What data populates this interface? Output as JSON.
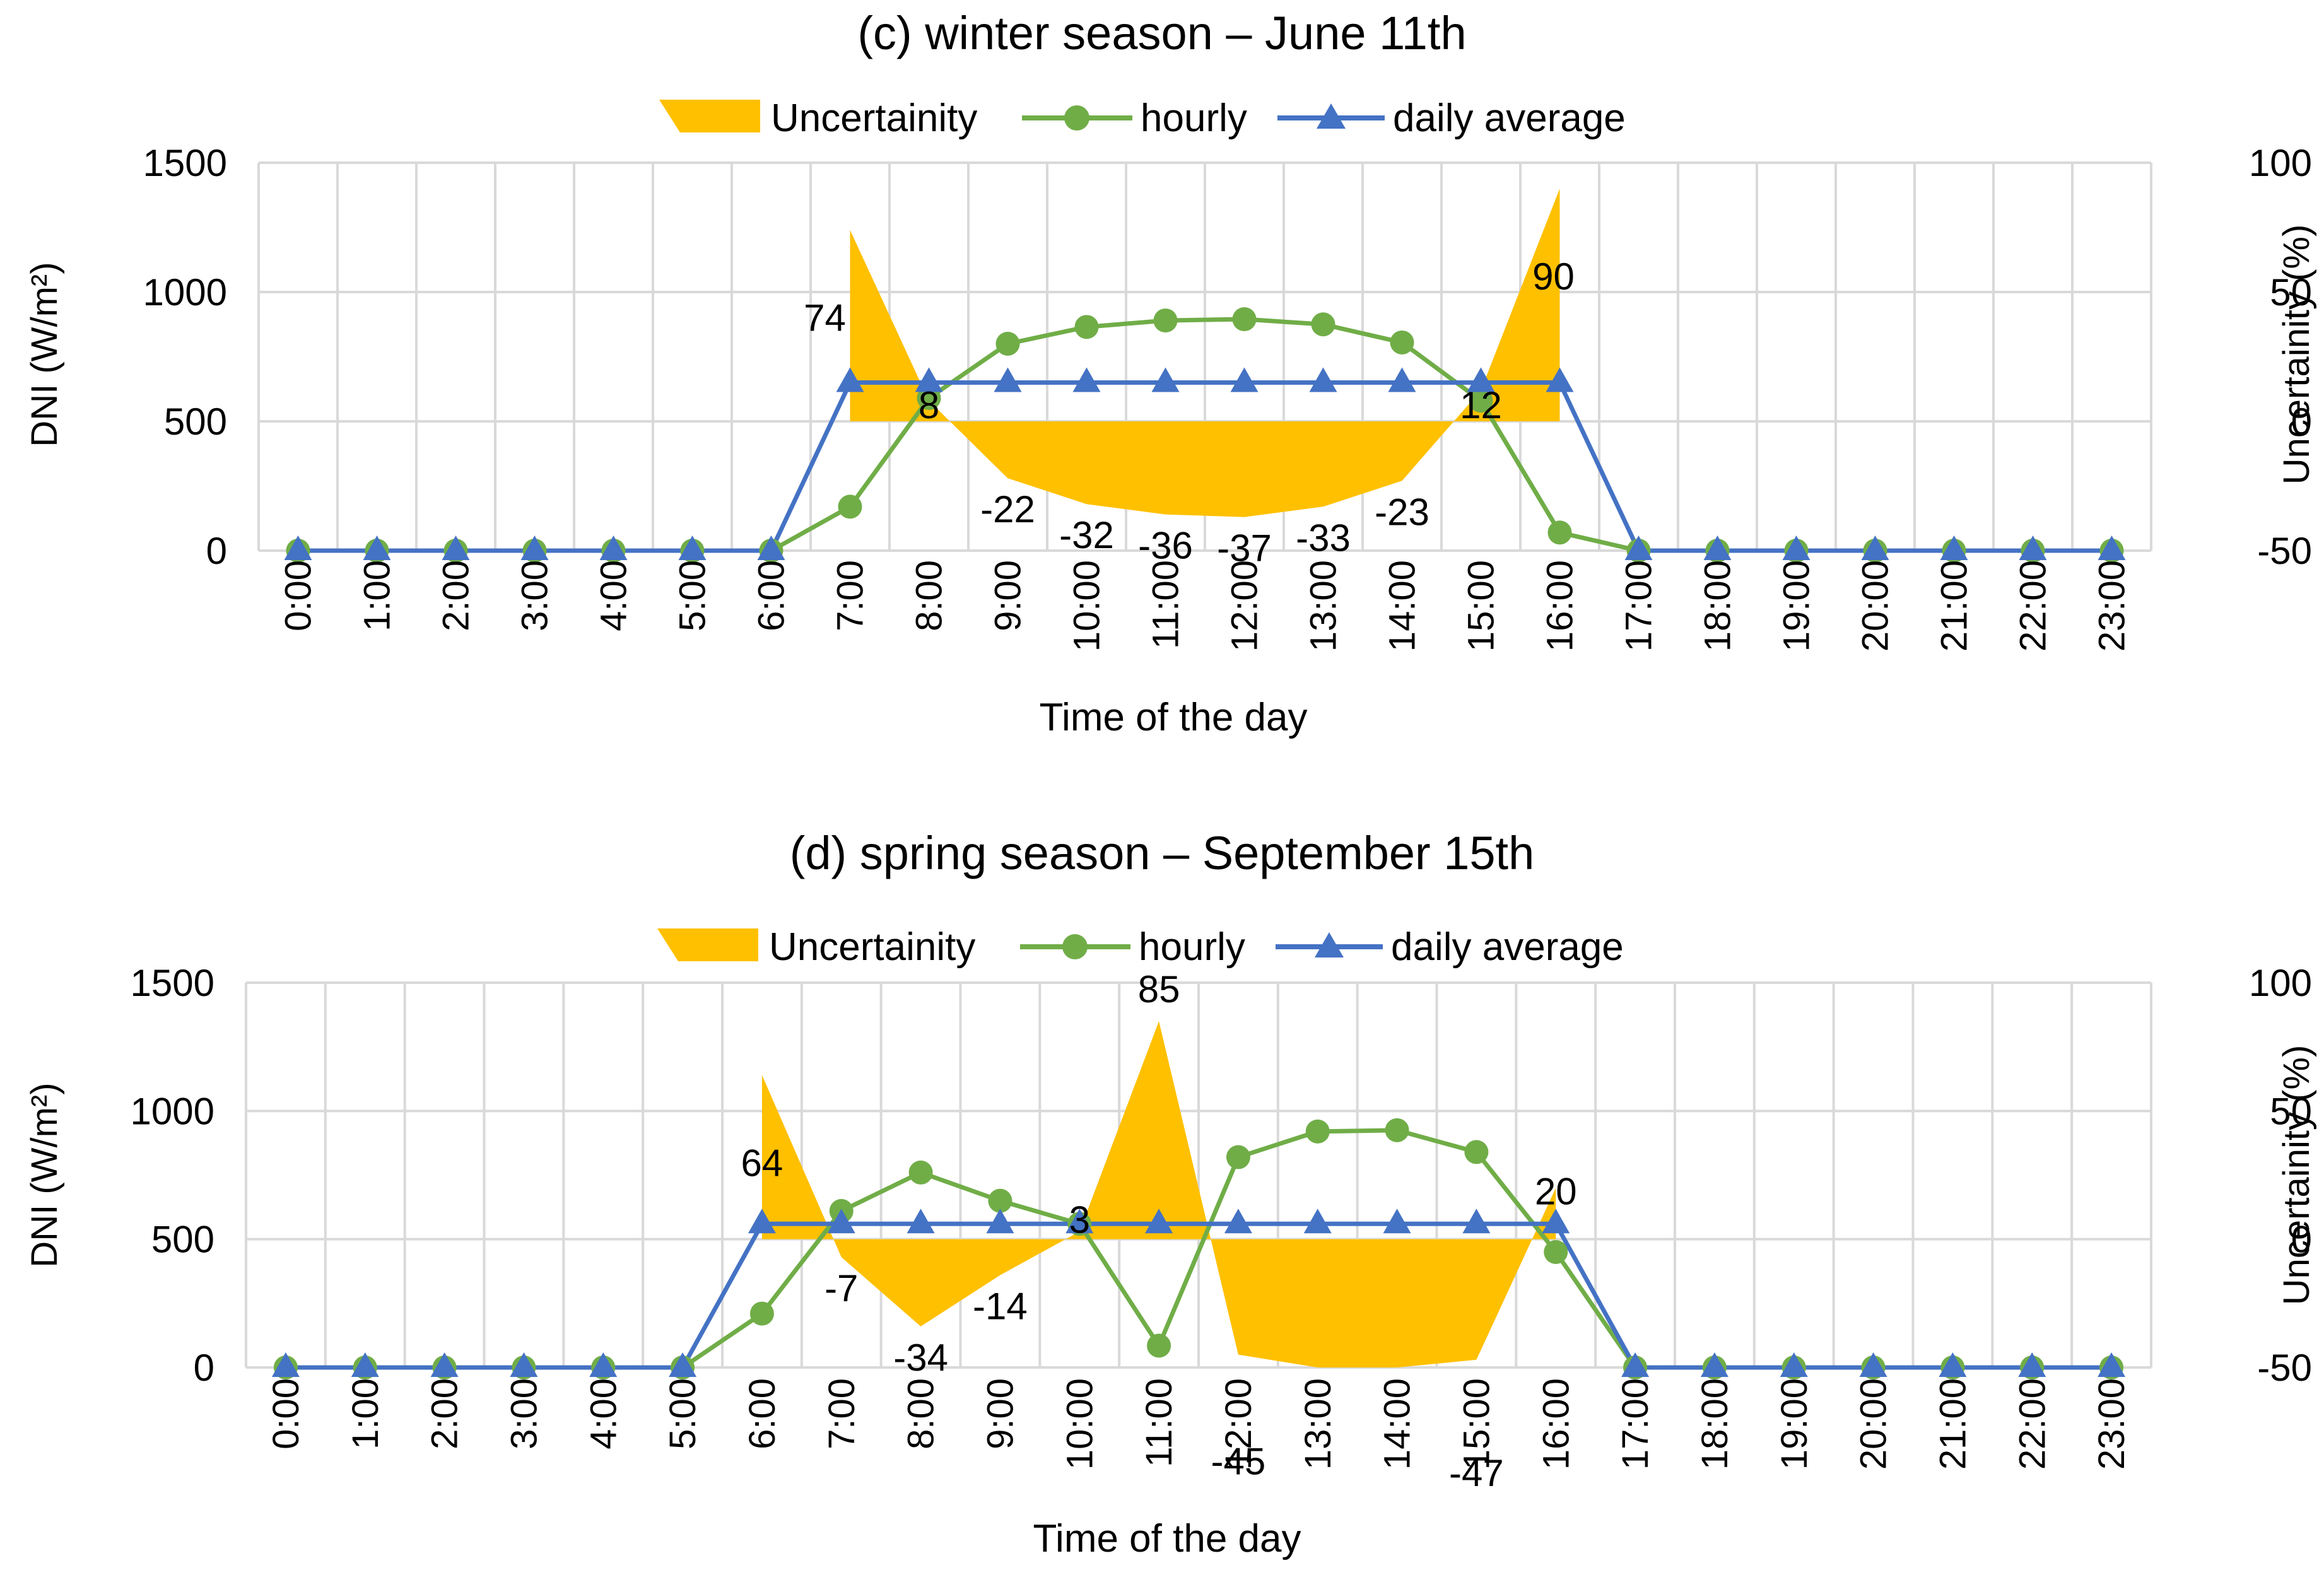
{
  "colors": {
    "uncertainty": "#FFC000",
    "hourly": "#70AD47",
    "daily_average": "#4472C4",
    "grid": "#D9D9D9"
  },
  "chart_data": [
    {
      "type": "line",
      "title": "(c) winter season – June 11th",
      "xlabel": "Time of the day",
      "ylabel": "DNI (W/m²)",
      "y2label": "Uncertainity (%)",
      "ylim": [
        0,
        1500
      ],
      "y2lim": [
        -50,
        100
      ],
      "yticks": [
        "0",
        "500",
        "1000",
        "1500"
      ],
      "y2ticks": [
        "-50",
        "0",
        "50",
        "100"
      ],
      "grid": true,
      "legend_position": "top",
      "categories": [
        "0:00",
        "1:00",
        "2:00",
        "3:00",
        "4:00",
        "5:00",
        "6:00",
        "7:00",
        "8:00",
        "9:00",
        "10:00",
        "11:00",
        "12:00",
        "13:00",
        "14:00",
        "15:00",
        "16:00",
        "17:00",
        "18:00",
        "19:00",
        "20:00",
        "21:00",
        "22:00",
        "23:00"
      ],
      "series": [
        {
          "name": "Uncertainity",
          "kind": "area",
          "axis": "right",
          "marker": "none",
          "values": [
            null,
            null,
            null,
            null,
            null,
            null,
            null,
            74,
            8,
            -22,
            -32,
            -36,
            -37,
            -33,
            -23,
            12,
            90,
            null,
            null,
            null,
            null,
            null,
            null,
            null
          ]
        },
        {
          "name": "hourly",
          "kind": "line",
          "axis": "left",
          "marker": "circle",
          "values": [
            0,
            0,
            0,
            0,
            0,
            0,
            0,
            170,
            590,
            800,
            865,
            890,
            895,
            875,
            805,
            580,
            70,
            0,
            0,
            0,
            0,
            0,
            0,
            0
          ]
        },
        {
          "name": "daily average",
          "kind": "line",
          "axis": "left",
          "marker": "triangle",
          "values": [
            0,
            0,
            0,
            0,
            0,
            0,
            0,
            650,
            650,
            650,
            650,
            650,
            650,
            650,
            650,
            650,
            650,
            0,
            0,
            0,
            0,
            0,
            0,
            0
          ]
        }
      ],
      "data_labels": [
        {
          "category": "7:00",
          "text": "74"
        },
        {
          "category": "8:00",
          "text": "8"
        },
        {
          "category": "9:00",
          "text": "-22"
        },
        {
          "category": "10:00",
          "text": "-32"
        },
        {
          "category": "11:00",
          "text": "-36"
        },
        {
          "category": "12:00",
          "text": "-37"
        },
        {
          "category": "13:00",
          "text": "-33"
        },
        {
          "category": "14:00",
          "text": "-23"
        },
        {
          "category": "15:00",
          "text": "12"
        },
        {
          "category": "16:00",
          "text": "90"
        }
      ]
    },
    {
      "type": "line",
      "title": "(d) spring season – September 15th",
      "xlabel": "Time of the day",
      "ylabel": "DNI (W/m²)",
      "y2label": "Uncertainity (%)",
      "ylim": [
        0,
        1500
      ],
      "y2lim": [
        -50,
        100
      ],
      "yticks": [
        "0",
        "500",
        "1000",
        "1500"
      ],
      "y2ticks": [
        "-50",
        "0",
        "50",
        "100"
      ],
      "grid": true,
      "legend_position": "top",
      "categories": [
        "0:00",
        "1:00",
        "2:00",
        "3:00",
        "4:00",
        "5:00",
        "6:00",
        "7:00",
        "8:00",
        "9:00",
        "10:00",
        "11:00",
        "12:00",
        "13:00",
        "14:00",
        "15:00",
        "16:00",
        "17:00",
        "18:00",
        "19:00",
        "20:00",
        "21:00",
        "22:00",
        "23:00"
      ],
      "series": [
        {
          "name": "Uncertainity",
          "kind": "area",
          "axis": "right",
          "marker": "none",
          "values": [
            null,
            null,
            null,
            null,
            null,
            null,
            64,
            -7,
            -34,
            -14,
            3,
            85,
            -45,
            -50,
            -50,
            -47,
            20,
            null,
            null,
            null,
            null,
            null,
            null,
            null
          ]
        },
        {
          "name": "hourly",
          "kind": "line",
          "axis": "left",
          "marker": "circle",
          "values": [
            0,
            0,
            0,
            0,
            0,
            0,
            210,
            610,
            760,
            650,
            560,
            85,
            820,
            920,
            925,
            840,
            450,
            0,
            0,
            0,
            0,
            0,
            0,
            0
          ]
        },
        {
          "name": "daily average",
          "kind": "line",
          "axis": "left",
          "marker": "triangle",
          "values": [
            0,
            0,
            0,
            0,
            0,
            0,
            560,
            560,
            560,
            560,
            560,
            560,
            560,
            560,
            560,
            560,
            560,
            0,
            0,
            0,
            0,
            0,
            0,
            0
          ]
        }
      ],
      "data_labels": [
        {
          "category": "6:00",
          "text": "64"
        },
        {
          "category": "7:00",
          "text": "-7"
        },
        {
          "category": "8:00",
          "text": "-34"
        },
        {
          "category": "9:00",
          "text": "-14"
        },
        {
          "category": "10:00",
          "text": "3"
        },
        {
          "category": "11:00",
          "text": "85"
        },
        {
          "category": "12:00",
          "text": "-45"
        },
        {
          "category": "15:00",
          "text": "-47"
        },
        {
          "category": "16:00",
          "text": "20"
        }
      ]
    }
  ]
}
